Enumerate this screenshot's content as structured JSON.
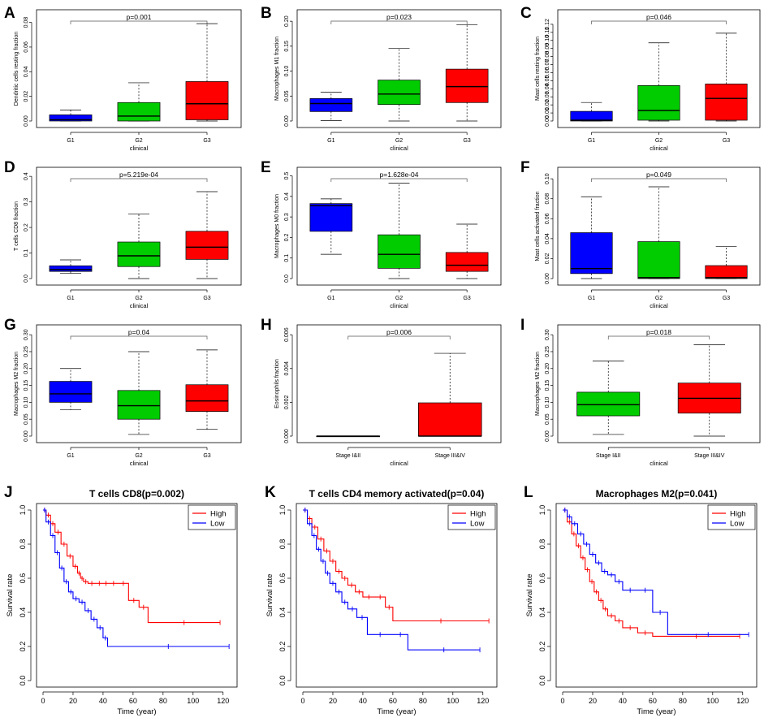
{
  "figure": {
    "colors": {
      "G1": "#0000ff",
      "G2": "#00cc00",
      "G3": "#ff0000",
      "high": "#ff0000",
      "low": "#0000ff"
    }
  },
  "chart_data": [
    {
      "id": "A",
      "type": "box",
      "letter": "A",
      "ylabel": "Dendritic cells resting fraction",
      "xlabel": "clinical",
      "pvalue": "p=0.001",
      "ylim": [
        0,
        0.085
      ],
      "yticks": [
        0,
        0.02,
        0.04,
        0.06,
        0.08
      ],
      "ytick_labels": [
        "0.00",
        "0.02",
        "0.04",
        "0.06",
        "0.08"
      ],
      "bracket": [
        0,
        2
      ],
      "groups": [
        {
          "label": "G1",
          "color": "#0000ff",
          "min": 0,
          "q1": 0,
          "median": 0.001,
          "q3": 0.005,
          "max": 0.009
        },
        {
          "label": "G2",
          "color": "#00cc00",
          "min": 0,
          "q1": 0,
          "median": 0.004,
          "q3": 0.015,
          "max": 0.031
        },
        {
          "label": "G3",
          "color": "#ff0000",
          "min": 0,
          "q1": 0.001,
          "median": 0.014,
          "q3": 0.032,
          "max": 0.079
        }
      ]
    },
    {
      "id": "B",
      "type": "box",
      "letter": "B",
      "ylabel": "Macrophages M1 fraction",
      "xlabel": "clinical",
      "pvalue": "p=0.023",
      "ylim": [
        0,
        0.21
      ],
      "yticks": [
        0,
        0.05,
        0.1,
        0.15,
        0.2
      ],
      "ytick_labels": [
        "0.00",
        "0.05",
        "0.10",
        "0.15",
        "0.20"
      ],
      "bracket": [
        0,
        2
      ],
      "groups": [
        {
          "label": "G1",
          "color": "#0000ff",
          "min": 0.001,
          "q1": 0.019,
          "median": 0.035,
          "q3": 0.045,
          "max": 0.058
        },
        {
          "label": "G2",
          "color": "#00cc00",
          "min": 0,
          "q1": 0.033,
          "median": 0.054,
          "q3": 0.082,
          "max": 0.146
        },
        {
          "label": "G3",
          "color": "#ff0000",
          "min": 0,
          "q1": 0.037,
          "median": 0.069,
          "q3": 0.104,
          "max": 0.193
        }
      ]
    },
    {
      "id": "C",
      "type": "box",
      "letter": "C",
      "ylabel": "Mast cells resting fraction",
      "xlabel": "clinical",
      "pvalue": "p=0.046",
      "ylim": [
        0,
        0.13
      ],
      "yticks": [
        0,
        0.01,
        0.02,
        0.03,
        0.04,
        0.05,
        0.06,
        0.07,
        0.08,
        0.09,
        0.1,
        0.11,
        0.12
      ],
      "ytick_labels": [
        "0.00",
        "0.01",
        "0.02",
        "0.03",
        "0.04",
        "0.05",
        "0.06",
        "0.07",
        "0.08",
        "0.09",
        "0.10",
        "0.11",
        "0.12"
      ],
      "bracket": [
        0,
        2
      ],
      "groups": [
        {
          "label": "G1",
          "color": "#0000ff",
          "min": 0,
          "q1": 0,
          "median": 0.001,
          "q3": 0.012,
          "max": 0.023
        },
        {
          "label": "G2",
          "color": "#00cc00",
          "min": 0,
          "q1": 0.001,
          "median": 0.013,
          "q3": 0.044,
          "max": 0.097
        },
        {
          "label": "G3",
          "color": "#ff0000",
          "min": 0,
          "q1": 0.001,
          "median": 0.028,
          "q3": 0.046,
          "max": 0.109
        }
      ]
    },
    {
      "id": "D",
      "type": "box",
      "letter": "D",
      "ylabel": "T cells CD8 fraction",
      "xlabel": "clinical",
      "pvalue": "p=5.219e-04",
      "ylim": [
        0,
        0.41
      ],
      "yticks": [
        0,
        0.1,
        0.2,
        0.3,
        0.4
      ],
      "ytick_labels": [
        "0.0",
        "0.1",
        "0.2",
        "0.3",
        "0.4"
      ],
      "bracket": [
        0,
        2
      ],
      "groups": [
        {
          "label": "G1",
          "color": "#0000ff",
          "min": 0.02,
          "q1": 0.028,
          "median": 0.035,
          "q3": 0.05,
          "max": 0.073
        },
        {
          "label": "G2",
          "color": "#00cc00",
          "min": 0,
          "q1": 0.047,
          "median": 0.089,
          "q3": 0.143,
          "max": 0.252
        },
        {
          "label": "G3",
          "color": "#ff0000",
          "min": 0,
          "q1": 0.075,
          "median": 0.123,
          "q3": 0.185,
          "max": 0.34
        }
      ]
    },
    {
      "id": "E",
      "type": "box",
      "letter": "E",
      "ylabel": "Macrophages M0 fraction",
      "xlabel": "clinical",
      "pvalue": "p=1.628e-04",
      "ylim": [
        0,
        0.51
      ],
      "yticks": [
        0,
        0.1,
        0.2,
        0.3,
        0.4,
        0.5
      ],
      "ytick_labels": [
        "0.0",
        "0.1",
        "0.2",
        "0.3",
        "0.4",
        "0.5"
      ],
      "bracket": [
        0,
        2
      ],
      "groups": [
        {
          "label": "G1",
          "color": "#0000ff",
          "min": 0.118,
          "q1": 0.23,
          "median": 0.355,
          "q3": 0.365,
          "max": 0.388
        },
        {
          "label": "G2",
          "color": "#00cc00",
          "min": 0,
          "q1": 0.05,
          "median": 0.118,
          "q3": 0.213,
          "max": 0.465
        },
        {
          "label": "G3",
          "color": "#ff0000",
          "min": 0,
          "q1": 0.035,
          "median": 0.065,
          "q3": 0.127,
          "max": 0.265
        }
      ]
    },
    {
      "id": "F",
      "type": "box",
      "letter": "F",
      "ylabel": "Mast cells activated fraction",
      "xlabel": "clinical",
      "pvalue": "p=0.049",
      "ylim": [
        0,
        0.105
      ],
      "yticks": [
        0,
        0.02,
        0.04,
        0.06,
        0.08,
        0.1
      ],
      "ytick_labels": [
        "0.00",
        "0.02",
        "0.04",
        "0.06",
        "0.08",
        "0.10"
      ],
      "bracket": [
        0,
        2
      ],
      "groups": [
        {
          "label": "G1",
          "color": "#0000ff",
          "min": 0,
          "q1": 0.005,
          "median": 0.01,
          "q3": 0.046,
          "max": 0.082
        },
        {
          "label": "G2",
          "color": "#00cc00",
          "min": 0,
          "q1": 0,
          "median": 0.001,
          "q3": 0.037,
          "max": 0.092
        },
        {
          "label": "G3",
          "color": "#ff0000",
          "min": 0,
          "q1": 0,
          "median": 0.001,
          "q3": 0.013,
          "max": 0.032
        }
      ]
    },
    {
      "id": "G",
      "type": "box",
      "letter": "G",
      "ylabel": "Macrophages M2 fraction",
      "xlabel": "clinical",
      "pvalue": "p=0.04",
      "ylim": [
        0,
        0.31
      ],
      "yticks": [
        0,
        0.05,
        0.1,
        0.15,
        0.2,
        0.25,
        0.3
      ],
      "ytick_labels": [
        "0.00",
        "0.05",
        "0.10",
        "0.15",
        "0.20",
        "0.25",
        "0.30"
      ],
      "bracket": [
        0,
        2
      ],
      "groups": [
        {
          "label": "G1",
          "color": "#0000ff",
          "min": 0.078,
          "q1": 0.1,
          "median": 0.125,
          "q3": 0.162,
          "max": 0.2
        },
        {
          "label": "G2",
          "color": "#00cc00",
          "min": 0.005,
          "q1": 0.05,
          "median": 0.09,
          "q3": 0.135,
          "max": 0.25
        },
        {
          "label": "G3",
          "color": "#ff0000",
          "min": 0.02,
          "q1": 0.073,
          "median": 0.104,
          "q3": 0.152,
          "max": 0.255
        }
      ]
    },
    {
      "id": "H",
      "type": "box",
      "letter": "H",
      "ylabel": "Eosinophils fraction",
      "xlabel": "clinical",
      "pvalue": "p=0.006",
      "ylim": [
        0,
        0.0062
      ],
      "yticks": [
        0,
        0.002,
        0.004,
        0.006
      ],
      "ytick_labels": [
        "0.000",
        "0.002",
        "0.004",
        "0.006"
      ],
      "bracket": [
        0,
        1
      ],
      "groups": [
        {
          "label": "Stage I&II",
          "color": "#00cc00",
          "min": 0,
          "q1": 0,
          "median": 0,
          "q3": 0,
          "max": 0
        },
        {
          "label": "Stage III&IV",
          "color": "#ff0000",
          "min": 0,
          "q1": 0,
          "median": 0,
          "q3": 0.00197,
          "max": 0.0049
        }
      ]
    },
    {
      "id": "I",
      "type": "box",
      "letter": "I",
      "ylabel": "Macrophages M2 fraction",
      "xlabel": "clinical",
      "pvalue": "p=0.018",
      "ylim": [
        0,
        0.31
      ],
      "yticks": [
        0,
        0.05,
        0.1,
        0.15,
        0.2,
        0.25,
        0.3
      ],
      "ytick_labels": [
        "0.00",
        "0.05",
        "0.10",
        "0.15",
        "0.20",
        "0.25",
        "0.30"
      ],
      "bracket": [
        0,
        1
      ],
      "groups": [
        {
          "label": "Stage I&II",
          "color": "#00cc00",
          "min": 0.005,
          "q1": 0.06,
          "median": 0.093,
          "q3": 0.13,
          "max": 0.222
        },
        {
          "label": "Stage III&IV",
          "color": "#ff0000",
          "min": 0,
          "q1": 0.068,
          "median": 0.112,
          "q3": 0.157,
          "max": 0.27
        }
      ]
    },
    {
      "id": "J",
      "type": "line",
      "letter": "J",
      "title": "T cells CD8(p=0.002)",
      "xlabel": "Time (year)",
      "ylabel": "Survival rate",
      "xlim": [
        0,
        125
      ],
      "ylim": [
        0,
        1
      ],
      "xticks": [
        0,
        20,
        40,
        60,
        80,
        100,
        120
      ],
      "yticks": [
        0,
        0.2,
        0.4,
        0.6,
        0.8,
        1
      ],
      "ytick_labels": [
        "0.0",
        "0.2",
        "0.4",
        "0.6",
        "0.8",
        "1.0"
      ],
      "legend": [
        "High",
        "Low"
      ],
      "series": [
        {
          "name": "High",
          "color": "#ff0000",
          "x": [
            0,
            2,
            5,
            8,
            12,
            16,
            20,
            23,
            25,
            27,
            30,
            35,
            40,
            44,
            50,
            57,
            64,
            70,
            118
          ],
          "y": [
            1,
            0.97,
            0.92,
            0.87,
            0.8,
            0.73,
            0.67,
            0.63,
            0.6,
            0.58,
            0.57,
            0.57,
            0.57,
            0.57,
            0.57,
            0.47,
            0.43,
            0.34,
            0.34
          ]
        },
        {
          "name": "Low",
          "color": "#0000ff",
          "x": [
            0,
            2,
            5,
            8,
            11,
            14,
            17,
            20,
            24,
            28,
            32,
            36,
            40,
            43,
            124
          ],
          "y": [
            1,
            0.93,
            0.85,
            0.75,
            0.66,
            0.58,
            0.52,
            0.48,
            0.46,
            0.41,
            0.36,
            0.31,
            0.25,
            0.2,
            0.2
          ]
        }
      ]
    },
    {
      "id": "K",
      "type": "line",
      "letter": "K",
      "title": "T cells CD4 memory activated(p=0.04)",
      "xlabel": "Time (year)",
      "ylabel": "Survival rate",
      "xlim": [
        0,
        125
      ],
      "ylim": [
        0,
        1
      ],
      "xticks": [
        0,
        20,
        40,
        60,
        80,
        100,
        120
      ],
      "yticks": [
        0,
        0.2,
        0.4,
        0.6,
        0.8,
        1
      ],
      "ytick_labels": [
        "0.0",
        "0.2",
        "0.4",
        "0.6",
        "0.8",
        "1.0"
      ],
      "legend": [
        "High",
        "Low"
      ],
      "series": [
        {
          "name": "High",
          "color": "#ff0000",
          "x": [
            0,
            3,
            6,
            10,
            14,
            18,
            22,
            26,
            30,
            35,
            40,
            48,
            55,
            60,
            124
          ],
          "y": [
            1,
            0.95,
            0.9,
            0.83,
            0.76,
            0.7,
            0.64,
            0.6,
            0.56,
            0.52,
            0.49,
            0.49,
            0.43,
            0.35,
            0.35
          ]
        },
        {
          "name": "Low",
          "color": "#0000ff",
          "x": [
            0,
            3,
            6,
            9,
            12,
            15,
            18,
            22,
            26,
            30,
            36,
            43,
            60,
            70,
            118
          ],
          "y": [
            1,
            0.92,
            0.85,
            0.77,
            0.7,
            0.63,
            0.57,
            0.52,
            0.46,
            0.42,
            0.37,
            0.27,
            0.27,
            0.18,
            0.18
          ]
        }
      ]
    },
    {
      "id": "L",
      "type": "line",
      "letter": "L",
      "title": "Macrophages M2(p=0.041)",
      "xlabel": "Time (year)",
      "ylabel": "Survival rate",
      "xlim": [
        0,
        125
      ],
      "ylim": [
        0,
        1
      ],
      "xticks": [
        0,
        20,
        40,
        60,
        80,
        100,
        120
      ],
      "yticks": [
        0,
        0.2,
        0.4,
        0.6,
        0.8,
        1
      ],
      "ytick_labels": [
        "0.0",
        "0.2",
        "0.4",
        "0.6",
        "0.8",
        "1.0"
      ],
      "legend": [
        "High",
        "Low"
      ],
      "series": [
        {
          "name": "High",
          "color": "#ff0000",
          "x": [
            0,
            3,
            6,
            9,
            12,
            15,
            18,
            21,
            24,
            27,
            30,
            35,
            40,
            50,
            60,
            118
          ],
          "y": [
            1,
            0.93,
            0.86,
            0.79,
            0.72,
            0.65,
            0.58,
            0.52,
            0.47,
            0.42,
            0.38,
            0.35,
            0.31,
            0.28,
            0.26,
            0.26
          ]
        },
        {
          "name": "Low",
          "color": "#0000ff",
          "x": [
            0,
            3,
            6,
            10,
            14,
            18,
            22,
            26,
            30,
            35,
            40,
            50,
            60,
            70,
            124
          ],
          "y": [
            1,
            0.96,
            0.92,
            0.86,
            0.8,
            0.74,
            0.69,
            0.64,
            0.62,
            0.58,
            0.53,
            0.53,
            0.4,
            0.27,
            0.27
          ]
        }
      ]
    }
  ]
}
